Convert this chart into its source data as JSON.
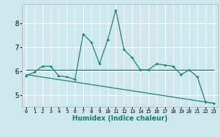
{
  "xlabel": "Humidex (Indice chaleur)",
  "background_color": "#cce8ee",
  "grid_color": "#ffffff",
  "line_color": "#1a7a6e",
  "xlim": [
    -0.5,
    23.5
  ],
  "ylim": [
    4.5,
    8.8
  ],
  "yticks": [
    5,
    6,
    7,
    8
  ],
  "xtick_labels": [
    "0",
    "1",
    "2",
    "3",
    "4",
    "5",
    "6",
    "7",
    "8",
    "9",
    "10",
    "11",
    "12",
    "13",
    "14",
    "15",
    "16",
    "17",
    "18",
    "19",
    "20",
    "21",
    "22",
    "23"
  ],
  "series1_x": [
    0,
    1,
    2,
    3,
    4,
    5,
    6,
    7,
    8,
    9,
    10,
    11,
    12,
    13,
    14,
    15,
    16,
    17,
    18,
    19,
    20,
    21,
    22,
    23
  ],
  "series1_y": [
    5.8,
    5.95,
    6.2,
    6.2,
    5.8,
    5.75,
    5.65,
    7.55,
    7.2,
    6.3,
    7.3,
    8.55,
    6.9,
    6.55,
    6.05,
    6.05,
    6.3,
    6.25,
    6.2,
    5.85,
    6.05,
    5.75,
    4.7,
    4.65
  ],
  "trend1_x": [
    0,
    23
  ],
  "trend1_y": [
    6.05,
    6.05
  ],
  "trend2_x": [
    0,
    23
  ],
  "trend2_y": [
    5.85,
    4.65
  ],
  "xlabel_fontsize": 7,
  "tick_fontsize": 6
}
